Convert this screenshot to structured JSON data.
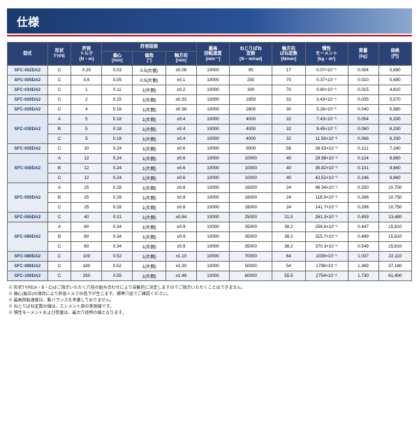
{
  "title": "仕様",
  "columns": {
    "model": "型式",
    "type_top": "形状",
    "type_bot": "TYPE",
    "torque_top": "許容",
    "torque_mid": "トルク",
    "torque_unit": "[N・m]",
    "miss_group": "許容誤差",
    "ecc": "偏心",
    "ecc_unit": "[mm]",
    "ang": "偏角",
    "ang_unit": "[°]",
    "axial": "軸方向",
    "axial_unit": "[mm]",
    "speed_top": "最高",
    "speed_mid": "回転速度",
    "speed_unit": "[min⁻¹]",
    "tor_spring_top": "ねじりばね",
    "tor_spring_mid": "定数",
    "tor_spring_unit": "[N・m/rad]",
    "ax_spring_top": "軸方向",
    "ax_spring_mid": "ばね定数",
    "ax_spring_unit": "[N/mm]",
    "inertia_top": "慣性",
    "inertia_mid": "モーメント",
    "inertia_unit": "[kg・m²]",
    "mass_top": "質量",
    "mass_unit": "[kg]",
    "price_top": "価格",
    "price_unit": "[円]"
  },
  "rows": [
    {
      "model": "SFC-002DA2",
      "span": 1,
      "items": [
        {
          "type": "C",
          "tq": "0.25",
          "ecc": "0.03",
          "ang": "0.5(片側)",
          "ax": "±0.08",
          "spd": "10000",
          "ts": "95",
          "as": "17",
          "in": "0.07×10⁻⁶",
          "ms": "0.004",
          "pr": "5,690"
        }
      ]
    },
    {
      "model": "SFC-005DA2",
      "span": 1,
      "items": [
        {
          "type": "C",
          "tq": "0.6",
          "ecc": "0.05",
          "ang": "0.5(片側)",
          "ax": "±0.1",
          "spd": "10000",
          "ts": "250",
          "as": "70",
          "in": "0.37×10⁻⁶",
          "ms": "0.010",
          "pr": "5,690"
        }
      ]
    },
    {
      "model": "SFC-010DA2",
      "span": 1,
      "items": [
        {
          "type": "C",
          "tq": "1",
          "ecc": "0.11",
          "ang": "1(片側)",
          "ax": "±0.2",
          "spd": "10000",
          "ts": "300",
          "as": "70",
          "in": "0.80×10⁻⁶",
          "ms": "0.015",
          "pr": "4,810"
        }
      ]
    },
    {
      "model": "SFC-020DA2",
      "span": 1,
      "items": [
        {
          "type": "C",
          "tq": "2",
          "ecc": "0.15",
          "ang": "1(片側)",
          "ax": "±0.33",
          "spd": "10000",
          "ts": "1850",
          "as": "32",
          "in": "3.43×10⁻⁶",
          "ms": "0.035",
          "pr": "5,570"
        }
      ]
    },
    {
      "model": "SFC-025DA2",
      "span": 1,
      "items": [
        {
          "type": "C",
          "tq": "4",
          "ecc": "0.16",
          "ang": "1(片側)",
          "ax": "±0.38",
          "spd": "10000",
          "ts": "2800",
          "as": "30",
          "in": "5.26×10⁻⁶",
          "ms": "0.040",
          "pr": "5,980"
        }
      ]
    },
    {
      "model": "SFC-030DA2",
      "span": 3,
      "band": true,
      "items": [
        {
          "type": "A",
          "tq": "5",
          "ecc": "0.18",
          "ang": "1(片側)",
          "ax": "±0.4",
          "spd": "10000",
          "ts": "4000",
          "as": "32",
          "in": "7.43×10⁻⁶",
          "ms": "0.054",
          "pr": "6,330"
        },
        {
          "type": "B",
          "tq": "5",
          "ecc": "0.18",
          "ang": "1(片側)",
          "ax": "±0.4",
          "spd": "10000",
          "ts": "4000",
          "as": "32",
          "in": "9.45×10⁻⁶",
          "ms": "0.060",
          "pr": "6,330"
        },
        {
          "type": "C",
          "tq": "5",
          "ecc": "0.18",
          "ang": "1(片側)",
          "ax": "±0.4",
          "spd": "10000",
          "ts": "4000",
          "as": "32",
          "in": "11.56×10⁻⁶",
          "ms": "0.068",
          "pr": "6,330"
        }
      ]
    },
    {
      "model": "SFC-035DA2",
      "span": 1,
      "items": [
        {
          "type": "C",
          "tq": "10",
          "ecc": "0.24",
          "ang": "1(片側)",
          "ax": "±0.6",
          "spd": "10000",
          "ts": "9000",
          "as": "56",
          "in": "26.93×10⁻⁶",
          "ms": "0.121",
          "pr": "7,340"
        }
      ]
    },
    {
      "model": "SFC-040DA2",
      "span": 3,
      "band": true,
      "items": [
        {
          "type": "A",
          "tq": "12",
          "ecc": "0.24",
          "ang": "1(片側)",
          "ax": "±0.6",
          "spd": "10000",
          "ts": "10000",
          "as": "40",
          "in": "29.98×10⁻⁶",
          "ms": "0.124",
          "pr": "8,860"
        },
        {
          "type": "B",
          "tq": "12",
          "ecc": "0.24",
          "ang": "1(片側)",
          "ax": "±0.6",
          "spd": "10000",
          "ts": "10000",
          "as": "40",
          "in": "35.82×10⁻⁶",
          "ms": "0.131",
          "pr": "8,860"
        },
        {
          "type": "C",
          "tq": "12",
          "ecc": "0.24",
          "ang": "1(片側)",
          "ax": "±0.6",
          "spd": "10000",
          "ts": "10000",
          "as": "40",
          "in": "42.52×10⁻⁶",
          "ms": "0.146",
          "pr": "8,860"
        }
      ]
    },
    {
      "model": "SFC-050DA2",
      "span": 3,
      "items": [
        {
          "type": "A",
          "tq": "25",
          "ecc": "0.28",
          "ang": "1(片側)",
          "ax": "±0.8",
          "spd": "10000",
          "ts": "16000",
          "as": "24",
          "in": "98.34×10⁻⁶",
          "ms": "0.250",
          "pr": "10,750"
        },
        {
          "type": "B",
          "tq": "25",
          "ecc": "0.28",
          "ang": "1(片側)",
          "ax": "±0.8",
          "spd": "10000",
          "ts": "16000",
          "as": "24",
          "in": "118.9×10⁻⁶",
          "ms": "0.268",
          "pr": "10,750"
        },
        {
          "type": "C",
          "tq": "25",
          "ecc": "0.28",
          "ang": "1(片側)",
          "ax": "±0.8",
          "spd": "10000",
          "ts": "16000",
          "as": "24",
          "in": "141.7×10⁻⁶",
          "ms": "0.298",
          "pr": "10,750"
        }
      ]
    },
    {
      "model": "SFC-055DA2",
      "span": 1,
      "band": true,
      "items": [
        {
          "type": "C",
          "tq": "40",
          "ecc": "0.31",
          "ang": "1(片側)",
          "ax": "±0.84",
          "spd": "10000",
          "ts": "25000",
          "as": "21.5",
          "in": "261.3×10⁻⁶",
          "ms": "0.459",
          "pr": "13,480"
        }
      ]
    },
    {
      "model": "SFC-060DA2",
      "span": 3,
      "items": [
        {
          "type": "A",
          "tq": "60",
          "ecc": "0.34",
          "ang": "1(片側)",
          "ax": "±0.9",
          "spd": "10000",
          "ts": "35000",
          "as": "38.2",
          "in": "256.6×10⁻⁶",
          "ms": "0.447",
          "pr": "15,810"
        },
        {
          "type": "B",
          "tq": "60",
          "ecc": "0.34",
          "ang": "1(片側)",
          "ax": "±0.9",
          "spd": "10000",
          "ts": "35000",
          "as": "38.2",
          "in": "315.7×10⁻⁶",
          "ms": "0.489",
          "pr": "15,810"
        },
        {
          "type": "C",
          "tq": "60",
          "ecc": "0.34",
          "ang": "1(片側)",
          "ax": "±0.9",
          "spd": "10000",
          "ts": "35000",
          "as": "38.2",
          "in": "370.3×10⁻⁶",
          "ms": "0.549",
          "pr": "15,810"
        }
      ]
    },
    {
      "model": "SFC-080DA2",
      "span": 1,
      "band": true,
      "items": [
        {
          "type": "C",
          "tq": "100",
          "ecc": "0.52",
          "ang": "1(片側)",
          "ax": "±1.10",
          "spd": "10000",
          "ts": "70000",
          "as": "64",
          "in": "1039×10⁻⁶",
          "ms": "1.037",
          "pr": "22,110"
        }
      ]
    },
    {
      "model": "SFC-090DA2",
      "span": 1,
      "items": [
        {
          "type": "C",
          "tq": "180",
          "ecc": "0.52",
          "ang": "1(片側)",
          "ax": "±1.30",
          "spd": "10000",
          "ts": "50000",
          "as": "54",
          "in": "1798×10⁻⁶",
          "ms": "1.369",
          "pr": "37,180"
        }
      ]
    },
    {
      "model": "SFC-100DA2",
      "span": 1,
      "band": true,
      "items": [
        {
          "type": "C",
          "tq": "250",
          "ecc": "0.55",
          "ang": "1(片側)",
          "ax": "±1.48",
          "spd": "10000",
          "ts": "60000",
          "as": "55.5",
          "in": "2754×10⁻⁶",
          "ms": "1.730",
          "pr": "61,400"
        }
      ]
    }
  ],
  "notes": [
    "※ 形状TYPE(A・B・C)はご指示いただく穴径の組み合わせにより自動的に決定しますのでご指示いただくことはできません。",
    "※ 偏心(転位)の保持により許容トルクの低下が生じます。標準穴径でご確認ください。",
    "※ 最高回転速度は、動バランスを考慮しておりません。",
    "※ ねじりばね定数の値は、エレメント部の実測値です。",
    "※ 慣性モーメントおよび質量は、最大穴径時の値となります。"
  ]
}
